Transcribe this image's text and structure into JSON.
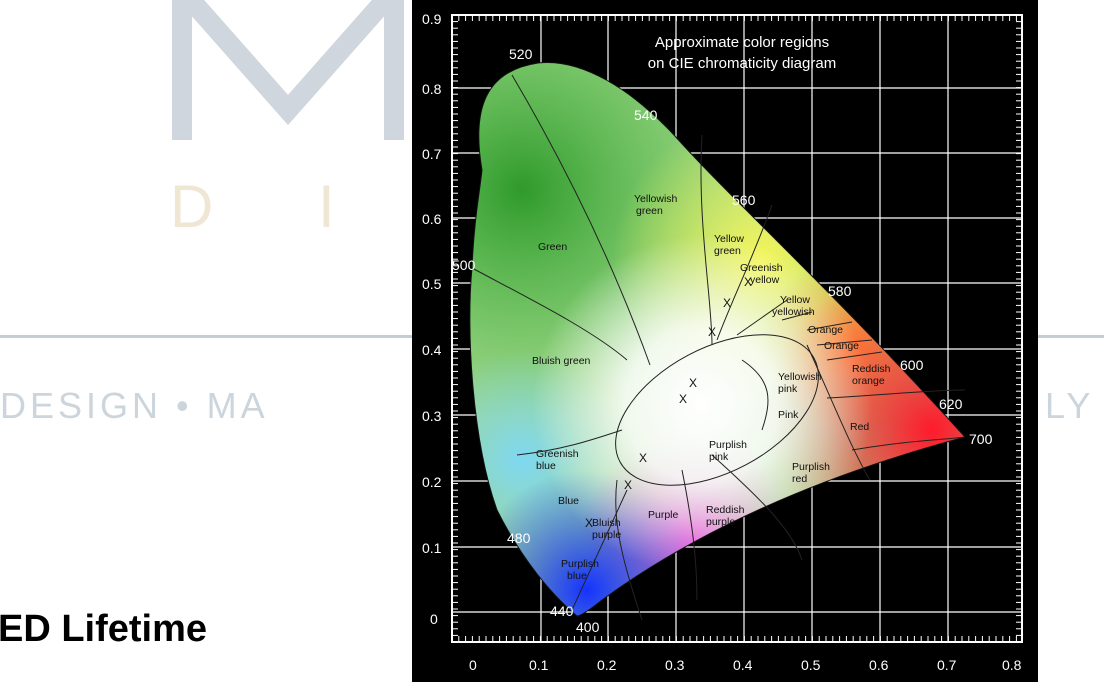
{
  "background": {
    "logo_partial_left": "DESIGN • MA",
    "logo_partial_right": "LY",
    "logo_disp": "D I S"
  },
  "slide_title": "ED Lifetime",
  "diagram": {
    "caption_line1": "Approximate color regions",
    "caption_line2": "on CIE chromaticity diagram",
    "x_ticks": [
      "0",
      "0.1",
      "0.2",
      "0.3",
      "0.4",
      "0.5",
      "0.6",
      "0.7",
      "0.8"
    ],
    "y_ticks": [
      "0.9",
      "0.8",
      "0.7",
      "0.6",
      "0.5",
      "0.4",
      "0.3",
      "0.2",
      "0.1",
      "0"
    ],
    "wavelengths": {
      "w520": "520",
      "w540": "540",
      "w560": "560",
      "w580": "580",
      "w600": "600",
      "w620": "620",
      "w700": "700",
      "w500": "500",
      "w480": "480",
      "w440": "440",
      "w400": "400"
    },
    "regions": {
      "yellowish_green_1": "Yellowish",
      "yellowish_green_2": "green",
      "green": "Green",
      "yellow_green_1": "Yellow",
      "yellow_green_2": "green",
      "greenish_yellow_1": "Greenish",
      "greenish_yellow_2": "yellow",
      "yellow_yellowish_1": "Yellow",
      "yellow_yellowish_2": "yellowish",
      "orange_1": "Orange",
      "orange_2": "Orange",
      "reddish_orange_1": "Reddish",
      "reddish_orange_2": "orange",
      "bluish_green": "Bluish green",
      "yellowish_pink_1": "Yellowish",
      "yellowish_pink_2": "pink",
      "pink": "Pink",
      "red": "Red",
      "purplish_pink_1": "Purplish",
      "purplish_pink_2": "pink",
      "greenish_blue_1": "Greenish",
      "greenish_blue_2": "blue",
      "purplish_red_1": "Purplish",
      "purplish_red_2": "red",
      "blue": "Blue",
      "bluish_purple_1": "Bluish",
      "bluish_purple_2": "purple",
      "purple": "Purple",
      "reddish_purple_1": "Reddish",
      "reddish_purple_2": "purple",
      "purplish_blue_1": "Purplish",
      "purplish_blue_2": "blue"
    },
    "marker": "X"
  }
}
